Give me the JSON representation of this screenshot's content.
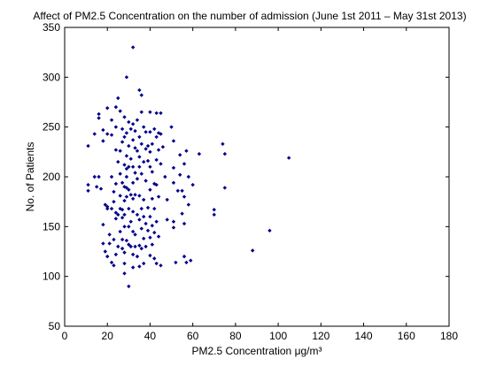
{
  "chart_data": {
    "type": "scatter",
    "title": "Affect of PM2.5 Concentration on the number of admission (June 1st 2011 – May 31st 2013)",
    "xlabel": "PM2.5 Concentration μg/m³",
    "ylabel": "No. of Patients",
    "xlim": [
      0,
      180
    ],
    "ylim": [
      50,
      350
    ],
    "xticks": [
      0,
      20,
      40,
      60,
      80,
      100,
      120,
      140,
      160,
      180
    ],
    "yticks": [
      50,
      100,
      150,
      200,
      250,
      300,
      350
    ],
    "grid": false,
    "marker_color": "#00008b",
    "points": [
      [
        11,
        231
      ],
      [
        11,
        192
      ],
      [
        11,
        186
      ],
      [
        14,
        243
      ],
      [
        14,
        200
      ],
      [
        15,
        190
      ],
      [
        16,
        263
      ],
      [
        16,
        259
      ],
      [
        16,
        200
      ],
      [
        17,
        188
      ],
      [
        18,
        247
      ],
      [
        18,
        236
      ],
      [
        18,
        152
      ],
      [
        18,
        133
      ],
      [
        19,
        172
      ],
      [
        19,
        125
      ],
      [
        20,
        269
      ],
      [
        20,
        243
      ],
      [
        20,
        170
      ],
      [
        20,
        168
      ],
      [
        20,
        120
      ],
      [
        21,
        142
      ],
      [
        21,
        133
      ],
      [
        22,
        257
      ],
      [
        22,
        242
      ],
      [
        22,
        200
      ],
      [
        22,
        168
      ],
      [
        22,
        114
      ],
      [
        23,
        185
      ],
      [
        23,
        175
      ],
      [
        23,
        137
      ],
      [
        23,
        111
      ],
      [
        24,
        270
      ],
      [
        24,
        250
      ],
      [
        24,
        227
      ],
      [
        24,
        193
      ],
      [
        24,
        164
      ],
      [
        24,
        158
      ],
      [
        24,
        122
      ],
      [
        25,
        279
      ],
      [
        25,
        215
      ],
      [
        25,
        162
      ],
      [
        25,
        130
      ],
      [
        26,
        266
      ],
      [
        26,
        226
      ],
      [
        26,
        203
      ],
      [
        26,
        181
      ],
      [
        26,
        168
      ],
      [
        26,
        145
      ],
      [
        27,
        248
      ],
      [
        27,
        235
      ],
      [
        27,
        194
      ],
      [
        27,
        167
      ],
      [
        27,
        159
      ],
      [
        27,
        137
      ],
      [
        27,
        128
      ],
      [
        28,
        260
      ],
      [
        28,
        240
      ],
      [
        28,
        212
      ],
      [
        28,
        190
      ],
      [
        28,
        176
      ],
      [
        28,
        162
      ],
      [
        28,
        150
      ],
      [
        28,
        124
      ],
      [
        28,
        113
      ],
      [
        28,
        103
      ],
      [
        29,
        300
      ],
      [
        29,
        244
      ],
      [
        29,
        221
      ],
      [
        29,
        208
      ],
      [
        29,
        200
      ],
      [
        29,
        189
      ],
      [
        29,
        180
      ],
      [
        29,
        136
      ],
      [
        30,
        255
      ],
      [
        30,
        231
      ],
      [
        30,
        210
      ],
      [
        30,
        187
      ],
      [
        30,
        168
      ],
      [
        30,
        150
      ],
      [
        30,
        132
      ],
      [
        30,
        90
      ],
      [
        31,
        248
      ],
      [
        31,
        218
      ],
      [
        31,
        182
      ],
      [
        31,
        155
      ],
      [
        31,
        130
      ],
      [
        32,
        330
      ],
      [
        32,
        253
      ],
      [
        32,
        237
      ],
      [
        32,
        210
      ],
      [
        32,
        194
      ],
      [
        32,
        178
      ],
      [
        32,
        165
      ],
      [
        32,
        145
      ],
      [
        32,
        122
      ],
      [
        32,
        109
      ],
      [
        33,
        246
      ],
      [
        33,
        229
      ],
      [
        33,
        204
      ],
      [
        33,
        182
      ],
      [
        33,
        142
      ],
      [
        33,
        130
      ],
      [
        34,
        257
      ],
      [
        34,
        226
      ],
      [
        34,
        198
      ],
      [
        34,
        162
      ],
      [
        34,
        120
      ],
      [
        35,
        287
      ],
      [
        35,
        240
      ],
      [
        35,
        220
      ],
      [
        35,
        210
      ],
      [
        35,
        181
      ],
      [
        35,
        157
      ],
      [
        35,
        131
      ],
      [
        35,
        110
      ],
      [
        36,
        282
      ],
      [
        36,
        265
      ],
      [
        36,
        233
      ],
      [
        36,
        203
      ],
      [
        36,
        168
      ],
      [
        36,
        148
      ],
      [
        36,
        128
      ],
      [
        37,
        250
      ],
      [
        37,
        215
      ],
      [
        37,
        177
      ],
      [
        37,
        160
      ],
      [
        37,
        138
      ],
      [
        37,
        113
      ],
      [
        38,
        245
      ],
      [
        38,
        228
      ],
      [
        38,
        196
      ],
      [
        38,
        153
      ],
      [
        38,
        130
      ],
      [
        39,
        231
      ],
      [
        39,
        216
      ],
      [
        39,
        169
      ],
      [
        39,
        146
      ],
      [
        40,
        265
      ],
      [
        40,
        245
      ],
      [
        40,
        225
      ],
      [
        40,
        210
      ],
      [
        40,
        187
      ],
      [
        40,
        160
      ],
      [
        40,
        139
      ],
      [
        40,
        121
      ],
      [
        41,
        233
      ],
      [
        41,
        205
      ],
      [
        41,
        178
      ],
      [
        41,
        151
      ],
      [
        41,
        132
      ],
      [
        42,
        248
      ],
      [
        42,
        193
      ],
      [
        42,
        168
      ],
      [
        42,
        144
      ],
      [
        42,
        118
      ],
      [
        43,
        264
      ],
      [
        43,
        240
      ],
      [
        43,
        217
      ],
      [
        43,
        192
      ],
      [
        43,
        155
      ],
      [
        43,
        113
      ],
      [
        44,
        244
      ],
      [
        44,
        227
      ],
      [
        44,
        180
      ],
      [
        44,
        140
      ],
      [
        45,
        264
      ],
      [
        45,
        243
      ],
      [
        45,
        213
      ],
      [
        45,
        111
      ],
      [
        46,
        230
      ],
      [
        47,
        200
      ],
      [
        48,
        177
      ],
      [
        48,
        157
      ],
      [
        50,
        250
      ],
      [
        51,
        236
      ],
      [
        51,
        209
      ],
      [
        51,
        194
      ],
      [
        51,
        155
      ],
      [
        51,
        149
      ],
      [
        52,
        114
      ],
      [
        53,
        186
      ],
      [
        54,
        222
      ],
      [
        54,
        202
      ],
      [
        55,
        186
      ],
      [
        55,
        163
      ],
      [
        56,
        213
      ],
      [
        56,
        180
      ],
      [
        56,
        153
      ],
      [
        56,
        120
      ],
      [
        57,
        226
      ],
      [
        57,
        114
      ],
      [
        58,
        200
      ],
      [
        58,
        172
      ],
      [
        59,
        116
      ],
      [
        60,
        192
      ],
      [
        63,
        223
      ],
      [
        70,
        167
      ],
      [
        70,
        162
      ],
      [
        74,
        233
      ],
      [
        75,
        223
      ],
      [
        75,
        189
      ],
      [
        88,
        126
      ],
      [
        96,
        146
      ],
      [
        105,
        219
      ]
    ]
  }
}
